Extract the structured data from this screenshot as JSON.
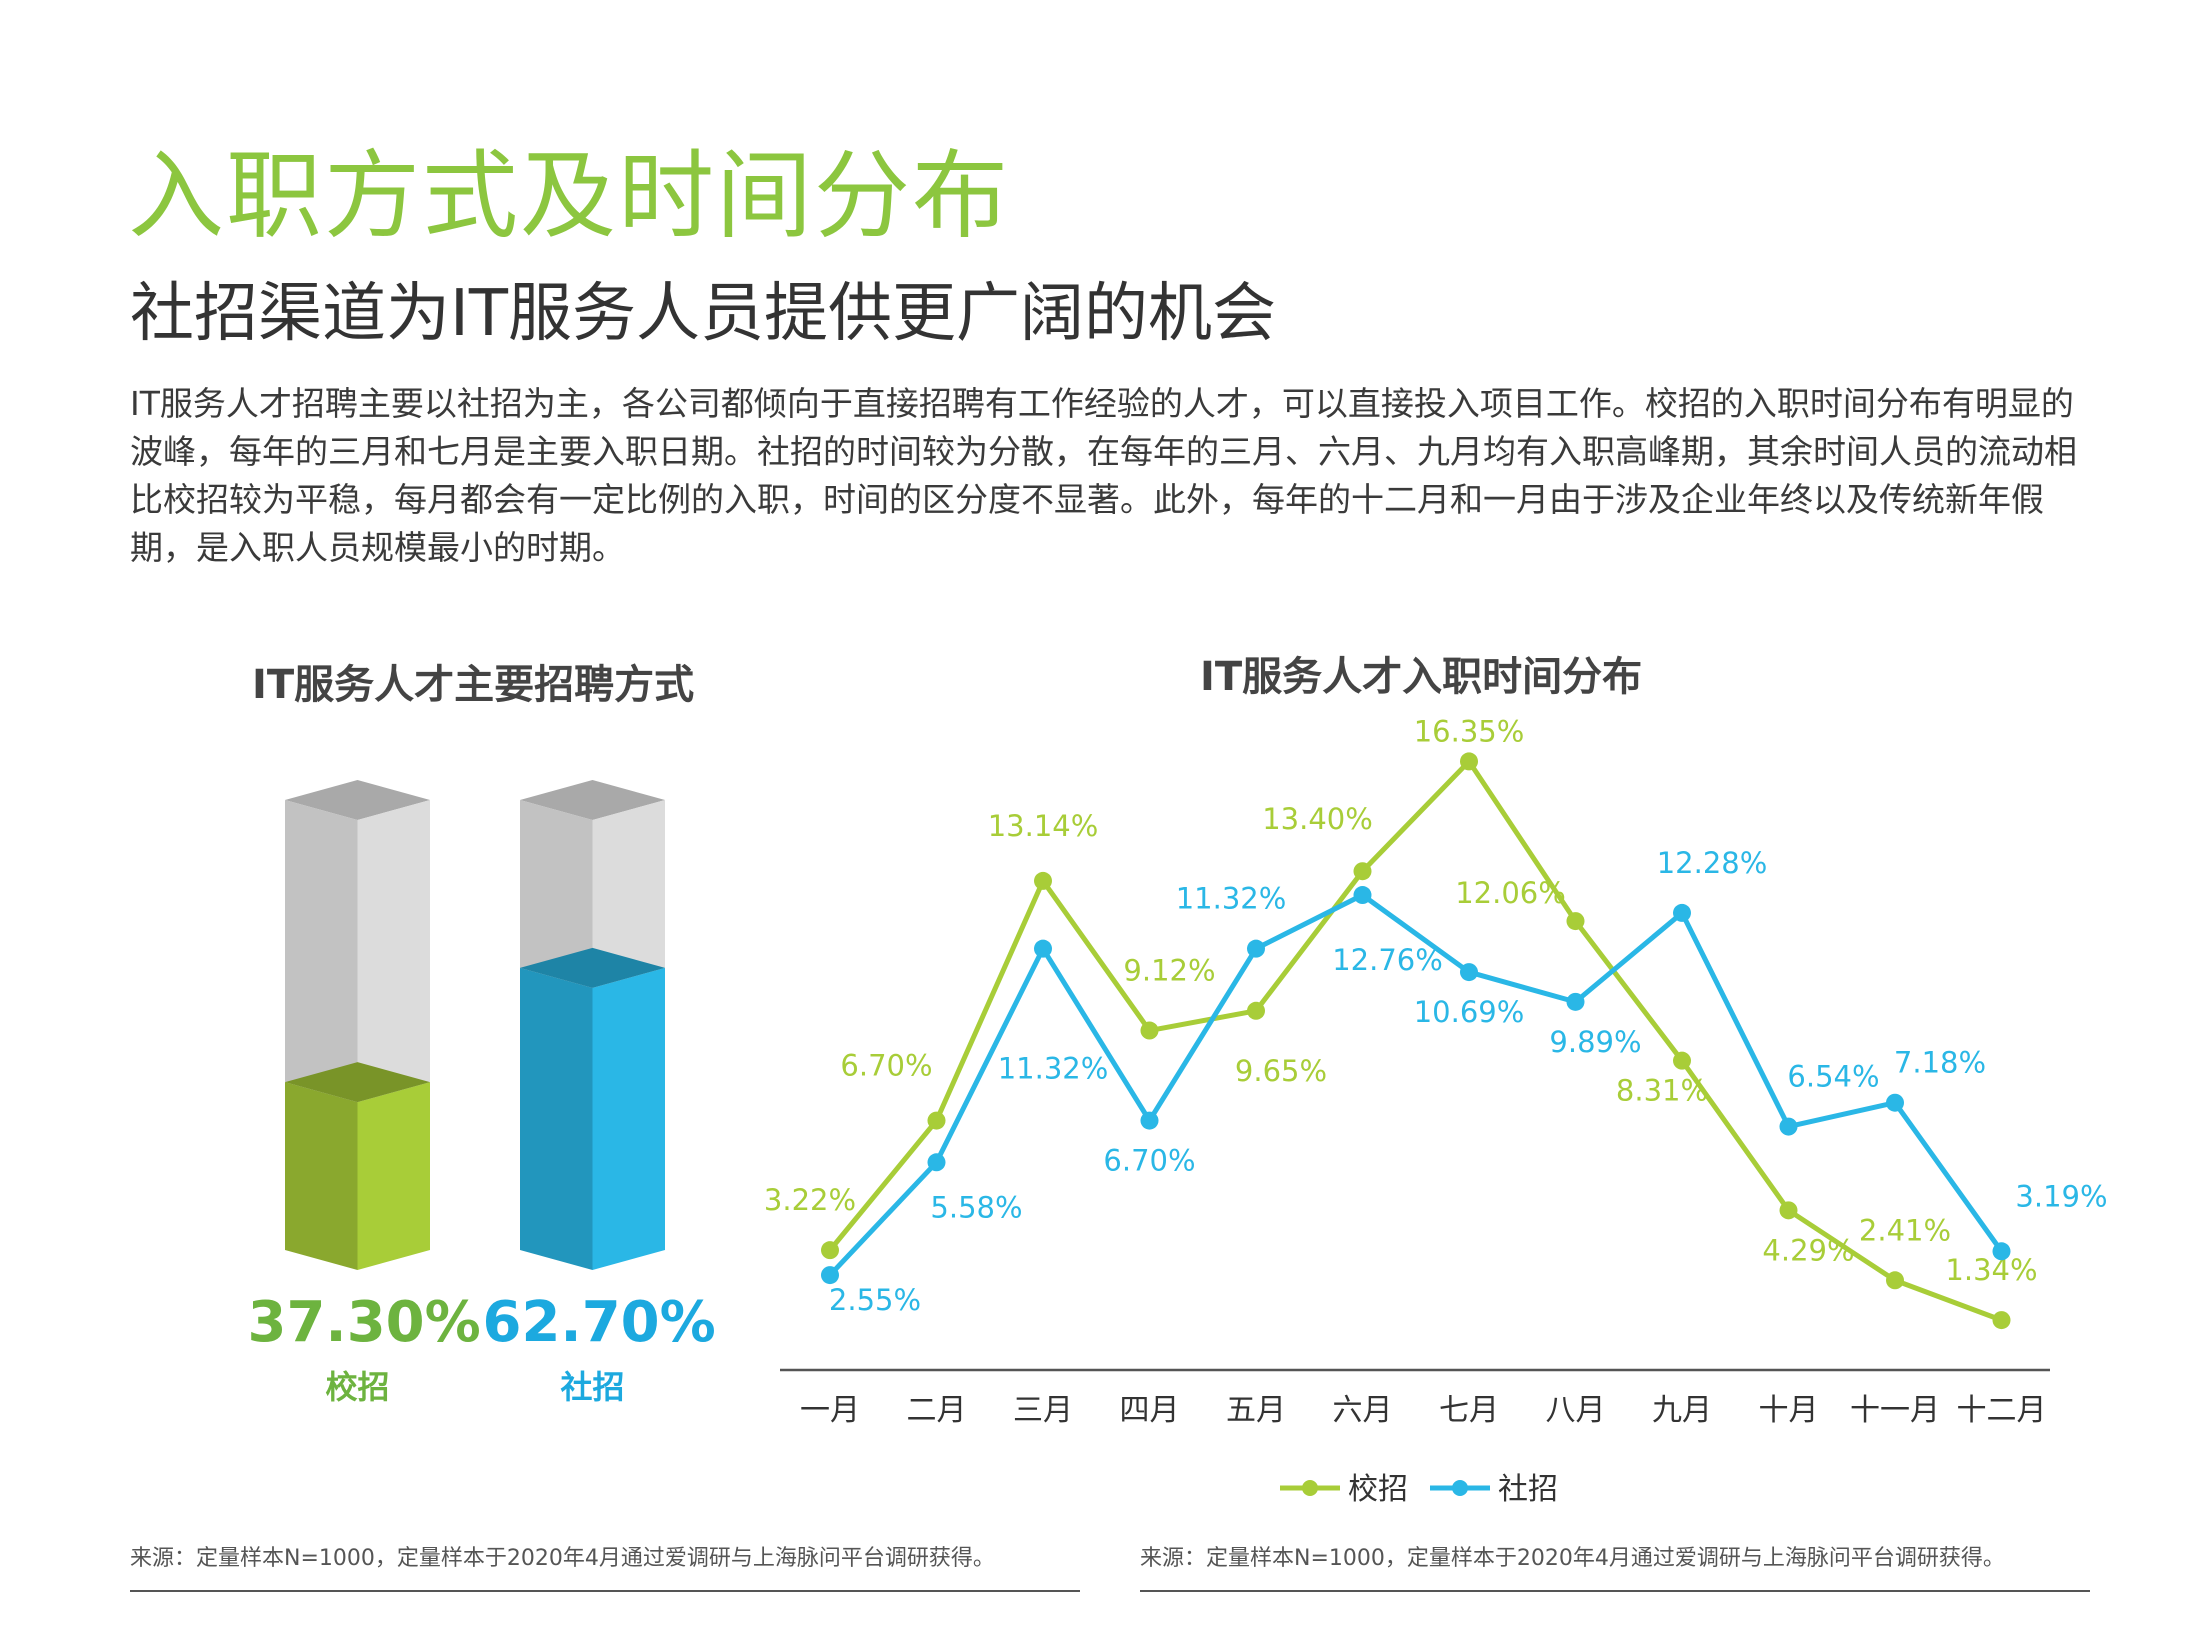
{
  "header": {
    "title": "入职方式及时间分布",
    "subtitle": "社招渠道为IT服务人员提供更广阔的机会"
  },
  "body_text": "IT服务人才招聘主要以社招为主，各公司都倾向于直接招聘有工作经验的人才，可以直接投入项目工作。校招的入职时间分布有明显的波峰，每年的三月和七月是主要入职日期。社招的时间较为分散，在每年的三月、六月、九月均有入职高峰期，其余时间人员的流动相比校招较为平稳，每月都会有一定比例的入职，时间的区分度不显著。此外，每年的十二月和一月由于涉及企业年终以及传统新年假期，是入职人员规模最小的时期。",
  "colors": {
    "campus": "#a8cd38",
    "social": "#2ab7e6",
    "campus_bar_value": "#6db33f",
    "social_bar_value": "#1ca9df",
    "title_green": "#8cc63f"
  },
  "chart_data": [
    {
      "type": "bar",
      "title": "IT服务人才主要招聘方式",
      "categories": [
        "校招",
        "社招"
      ],
      "values": [
        37.3,
        62.7
      ],
      "value_labels": [
        "37.30%",
        "62.70%"
      ],
      "ylim": [
        0,
        100
      ]
    },
    {
      "type": "line",
      "title": "IT服务人才入职时间分布",
      "categories": [
        "一月",
        "二月",
        "三月",
        "四月",
        "五月",
        "六月",
        "七月",
        "八月",
        "九月",
        "十月",
        "十一月",
        "十二月"
      ],
      "series": [
        {
          "name": "校招",
          "values": [
            3.22,
            6.7,
            13.14,
            9.12,
            9.65,
            13.4,
            16.35,
            12.06,
            8.31,
            4.29,
            2.41,
            1.34
          ],
          "labels": [
            "3.22%",
            "6.70%",
            "13.14%",
            "9.12%",
            "9.65%",
            "13.40%",
            "16.35%",
            "12.06%",
            "8.31%",
            "4.29%",
            "2.41%",
            "1.34%"
          ]
        },
        {
          "name": "社招",
          "values": [
            2.55,
            5.58,
            11.32,
            6.7,
            11.32,
            12.76,
            10.69,
            9.89,
            12.28,
            6.54,
            7.18,
            3.19
          ],
          "labels": [
            "2.55%",
            "5.58%",
            "11.32%",
            "6.70%",
            "11.32%",
            "12.76%",
            "10.69%",
            "9.89%",
            "12.28%",
            "6.54%",
            "7.18%",
            "3.19%"
          ]
        }
      ],
      "ylim": [
        0,
        18
      ],
      "grid": false,
      "legend": "bottom-center"
    }
  ],
  "footer": {
    "source_left": "来源：定量样本N=1000，定量样本于2020年4月通过爱调研与上海脉问平台调研获得。",
    "source_right": "来源：定量样本N=1000，定量样本于2020年4月通过爱调研与上海脉问平台调研获得。"
  }
}
